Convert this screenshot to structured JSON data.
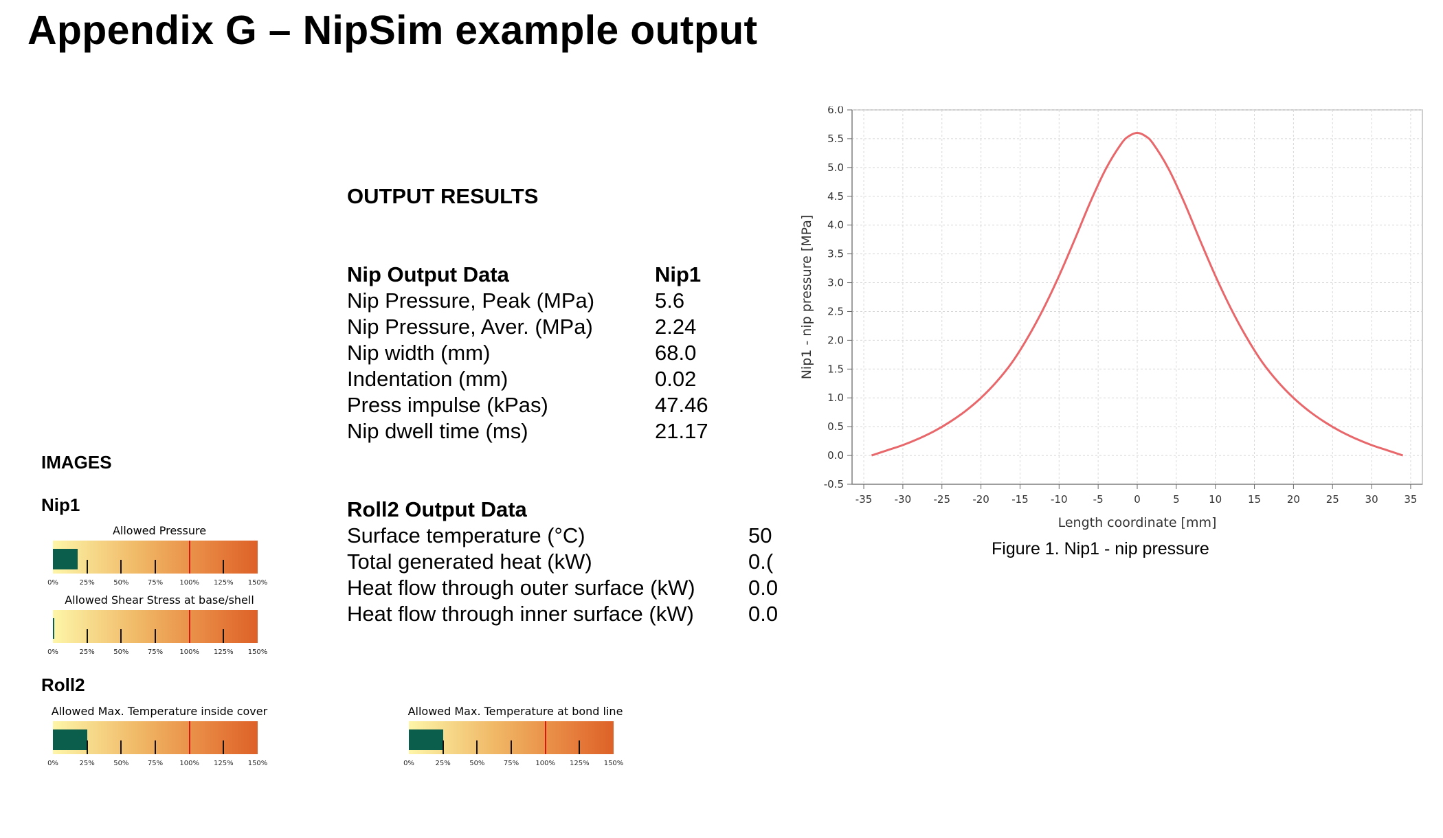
{
  "page": {
    "title": "Appendix G – NipSim example output",
    "images_heading": "IMAGES",
    "output_heading": "OUTPUT RESULTS",
    "figure_caption": "Figure 1. Nip1 - nip pressure"
  },
  "gauges": {
    "nip1_heading": "Nip1",
    "roll2_heading": "Roll2",
    "tick_labels": [
      "0%",
      "25%",
      "50%",
      "75%",
      "100%",
      "125%",
      "150%"
    ],
    "items": [
      {
        "title": "Allowed Pressure",
        "level_percent": 18
      },
      {
        "title": "Allowed Shear Stress at base/shell",
        "level_percent": 1
      },
      {
        "title": "Allowed Max. Temperature inside cover",
        "level_percent": 25
      },
      {
        "title": "Allowed Max. Temperature at bond line",
        "level_percent": 25
      }
    ],
    "limit_percent": 100,
    "colors": {
      "fill": "#0c5e4c",
      "limit_line": "#d11a12"
    }
  },
  "nip_table": {
    "header_label": "Nip Output Data",
    "header_value": "Nip1",
    "rows": [
      {
        "label": "Nip Pressure, Peak (MPa)",
        "value": "5.6"
      },
      {
        "label": "Nip Pressure, Aver. (MPa)",
        "value": "2.24"
      },
      {
        "label": "Nip width (mm)",
        "value": "68.0"
      },
      {
        "label": "Indentation (mm)",
        "value": "0.02"
      },
      {
        "label": "Press impulse (kPas)",
        "value": "47.46"
      },
      {
        "label": "Nip dwell time (ms)",
        "value": "21.17"
      }
    ]
  },
  "roll_table": {
    "header_label": "Roll2 Output Data",
    "rows": [
      {
        "label": "Surface temperature (°C)",
        "value": "50"
      },
      {
        "label": "Total generated heat (kW)",
        "value": "0.("
      },
      {
        "label": "Heat flow through outer surface (kW)",
        "value": "0.0"
      },
      {
        "label": "Heat flow through inner surface (kW)",
        "value": "0.0"
      }
    ]
  },
  "chart_data": {
    "type": "line",
    "title": "",
    "xlabel": "Length coordinate [mm]",
    "ylabel": "Nip1 - nip pressure [MPa]",
    "xlim": [
      -36.5,
      36.5
    ],
    "ylim": [
      -0.5,
      6.0
    ],
    "xticks": [
      -35,
      -30,
      -25,
      -20,
      -15,
      -10,
      -5,
      0,
      5,
      10,
      15,
      20,
      25,
      30,
      35
    ],
    "yticks": [
      -0.5,
      0.0,
      0.5,
      1.0,
      1.5,
      2.0,
      2.5,
      3.0,
      3.5,
      4.0,
      4.5,
      5.0,
      5.5,
      6.0
    ],
    "ytick_labels": [
      "-0.5",
      "0.0",
      "0.5",
      "1.0",
      "1.5",
      "2.0",
      "2.5",
      "3.0",
      "3.5",
      "4.0",
      "4.5",
      "5.0",
      "5.5",
      "6.0"
    ],
    "grid": true,
    "color": "#e8676b",
    "series": [
      {
        "x": [
          -34,
          -32,
          -30,
          -28,
          -26,
          -24,
          -22,
          -20,
          -18,
          -16,
          -14,
          -12,
          -10,
          -8,
          -6,
          -4,
          -2,
          -1,
          0,
          1,
          2,
          4,
          6,
          8,
          10,
          12,
          14,
          16,
          18,
          20,
          22,
          24,
          26,
          28,
          30,
          32,
          34
        ],
        "y": [
          0.0,
          0.09,
          0.18,
          0.29,
          0.42,
          0.58,
          0.77,
          1.0,
          1.28,
          1.62,
          2.05,
          2.55,
          3.12,
          3.75,
          4.4,
          4.98,
          5.42,
          5.55,
          5.6,
          5.55,
          5.42,
          4.98,
          4.4,
          3.75,
          3.12,
          2.55,
          2.05,
          1.62,
          1.28,
          1.0,
          0.77,
          0.58,
          0.42,
          0.29,
          0.18,
          0.09,
          0.0
        ]
      }
    ]
  }
}
